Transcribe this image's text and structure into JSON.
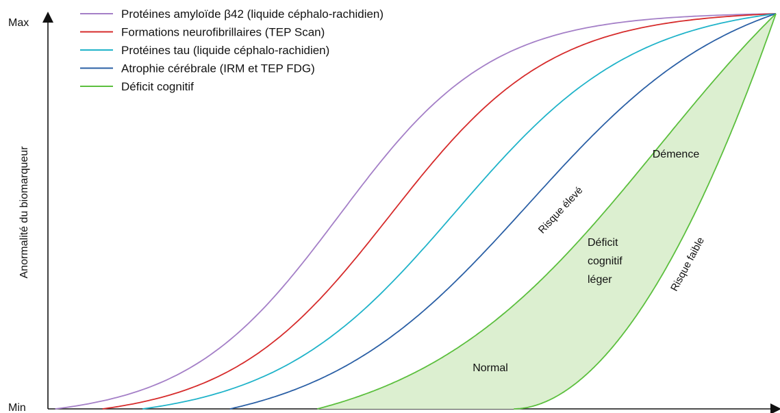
{
  "chart_data": {
    "type": "line",
    "title": "",
    "xlabel": "",
    "ylabel": "Anormalité du biomarqueur",
    "y_ticks": {
      "max": "Max",
      "min": "Min"
    },
    "ylim": [
      0,
      1
    ],
    "xlim": [
      0,
      1
    ],
    "grid": false,
    "legend_position": "top-left",
    "series": [
      {
        "name": "Protéines amyloïde β42 (liquide céphalo-rachidien)",
        "color": "#a47fc7",
        "onset": 0.01,
        "midpoint": 0.4,
        "steepness": 9.5
      },
      {
        "name": "Formations neurofibrillaires (TEP Scan)",
        "color": "#d62b2b",
        "onset": 0.075,
        "midpoint": 0.47,
        "steepness": 9.0
      },
      {
        "name": "Protéines tau (liquide céphalo-rachidien)",
        "color": "#1fb3c9",
        "onset": 0.13,
        "midpoint": 0.56,
        "steepness": 8.0
      },
      {
        "name": "Atrophie cérébrale (IRM et TEP FDG)",
        "color": "#2a5fa5",
        "onset": 0.25,
        "midpoint": 0.66,
        "steepness": 7.0
      },
      {
        "name": "Déficit cognitif",
        "color": "#5bbf3d",
        "onset": 0.37,
        "midpoint": 0.84,
        "steepness": 6.0
      }
    ],
    "cognitive_band": {
      "upper_label": "Risque élevé",
      "lower_label": "Risque faible",
      "fill": "#dcefd0",
      "stroke": "#5bbf3d"
    },
    "regions": [
      {
        "label": "Normal"
      },
      {
        "label": "Déficit cognitif léger",
        "lines": [
          "Déficit",
          "cognitif",
          "léger"
        ]
      },
      {
        "label": "Démence"
      }
    ]
  }
}
